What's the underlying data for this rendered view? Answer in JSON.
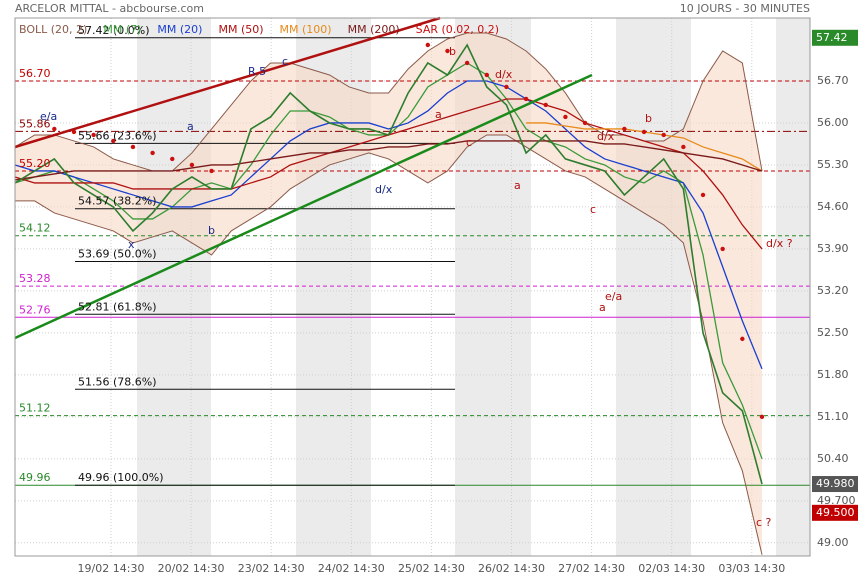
{
  "chart_data": {
    "type": "line",
    "title": "ARCELOR MITTAL - abcbourse.com",
    "subtitle": "10 JOURS - 30 MINUTES",
    "ylim": [
      48.78,
      57.75
    ],
    "yticks": [
      {
        "value": 49.0,
        "label": "49.00"
      },
      {
        "value": 49.7,
        "label": "49.700"
      },
      {
        "value": 50.4,
        "label": "50.40"
      },
      {
        "value": 51.1,
        "label": "51.10"
      },
      {
        "value": 51.8,
        "label": "51.80"
      },
      {
        "value": 52.5,
        "label": "52.50"
      },
      {
        "value": 53.2,
        "label": "53.20"
      },
      {
        "value": 53.9,
        "label": "53.90"
      },
      {
        "value": 54.6,
        "label": "54.60"
      },
      {
        "value": 55.3,
        "label": "55.30"
      },
      {
        "value": 56.0,
        "label": "56.00"
      },
      {
        "value": 56.7,
        "label": "56.70"
      }
    ],
    "xticks": [
      "19/02 14:30",
      "20/02 14:30",
      "23/02 14:30",
      "24/02 14:30",
      "25/02 14:30",
      "26/02 14:30",
      "27/02 14:30",
      "02/03 14:30",
      "03/03 14:30"
    ],
    "grid": true,
    "color": "#2e7d2e",
    "values": [
      55.0,
      55.2,
      55.4,
      55.0,
      54.8,
      54.6,
      54.2,
      54.5,
      54.9,
      55.1,
      54.9,
      54.9,
      55.9,
      56.1,
      56.5,
      56.2,
      56.0,
      55.9,
      55.9,
      55.8,
      56.5,
      57.0,
      56.8,
      57.3,
      56.6,
      56.3,
      55.5,
      55.8,
      55.4,
      55.3,
      55.2,
      54.8,
      55.1,
      55.4,
      54.9,
      52.5,
      51.5,
      51.2,
      49.98
    ],
    "series": [
      {
        "name": "BOLL (20, 2)",
        "color": "#8b5a4a",
        "upper": [
          55.6,
          55.8,
          55.8,
          55.7,
          55.6,
          55.4,
          55.3,
          55.2,
          55.2,
          55.5,
          55.9,
          56.3,
          56.7,
          57.0,
          57.0,
          56.9,
          56.8,
          56.6,
          56.5,
          56.5,
          56.9,
          57.2,
          57.4,
          57.5,
          57.5,
          57.4,
          57.2,
          56.9,
          56.5,
          56.0,
          55.8,
          55.8,
          55.7,
          55.7,
          55.9,
          56.7,
          57.2,
          57.0,
          55.2
        ],
        "lower": [
          54.7,
          54.7,
          54.5,
          54.4,
          54.3,
          54.2,
          54.0,
          54.1,
          54.2,
          54.0,
          53.8,
          54.2,
          54.4,
          54.6,
          54.9,
          55.1,
          55.3,
          55.4,
          55.5,
          55.4,
          55.2,
          55.0,
          55.2,
          55.6,
          55.8,
          55.8,
          55.6,
          55.4,
          55.2,
          55.1,
          54.9,
          54.7,
          54.5,
          54.3,
          54.0,
          52.7,
          51.0,
          50.2,
          48.8
        ]
      },
      {
        "name": "MM (7)",
        "color": "#3a9a3a",
        "values": [
          55.0,
          55.1,
          55.2,
          55.1,
          54.9,
          54.7,
          54.4,
          54.4,
          54.6,
          54.9,
          55.0,
          54.9,
          55.3,
          55.8,
          56.2,
          56.2,
          56.1,
          55.9,
          55.8,
          55.8,
          56.1,
          56.6,
          56.8,
          57.0,
          56.8,
          56.4,
          55.9,
          55.7,
          55.6,
          55.4,
          55.3,
          55.1,
          55.0,
          55.2,
          55.0,
          53.8,
          52.0,
          51.3,
          50.4
        ]
      },
      {
        "name": "MM (20)",
        "color": "#1a3fd0",
        "values": [
          55.3,
          55.2,
          55.2,
          55.1,
          55.0,
          54.9,
          54.8,
          54.7,
          54.6,
          54.6,
          54.7,
          54.8,
          55.1,
          55.4,
          55.7,
          55.9,
          56.0,
          56.0,
          56.0,
          55.9,
          56.0,
          56.2,
          56.5,
          56.7,
          56.7,
          56.6,
          56.4,
          56.2,
          55.9,
          55.6,
          55.4,
          55.3,
          55.2,
          55.1,
          55.0,
          54.5,
          53.6,
          52.7,
          51.9
        ]
      },
      {
        "name": "MM (50)",
        "color": "#b01010",
        "values": [
          55.1,
          55.0,
          55.0,
          55.0,
          55.0,
          55.0,
          54.9,
          54.9,
          54.9,
          54.9,
          54.9,
          54.9,
          55.0,
          55.1,
          55.3,
          55.4,
          55.5,
          55.6,
          55.7,
          55.8,
          55.9,
          56.0,
          56.1,
          56.2,
          56.3,
          56.4,
          56.4,
          56.3,
          56.2,
          56.0,
          55.9,
          55.8,
          55.7,
          55.6,
          55.5,
          55.2,
          54.8,
          54.3,
          53.9
        ]
      },
      {
        "name": "MM (100)",
        "color": "#e88a1a",
        "values": [
          null,
          null,
          null,
          null,
          null,
          null,
          null,
          null,
          null,
          null,
          null,
          null,
          null,
          null,
          null,
          null,
          null,
          null,
          null,
          null,
          null,
          null,
          null,
          null,
          null,
          null,
          56.0,
          56.0,
          55.95,
          55.9,
          55.9,
          55.9,
          55.85,
          55.8,
          55.75,
          55.6,
          55.5,
          55.4,
          55.2
        ]
      },
      {
        "name": "MM (200)",
        "color": "#7a1a1a",
        "values": [
          55.05,
          55.1,
          55.15,
          55.2,
          55.2,
          55.2,
          55.2,
          55.2,
          55.2,
          55.25,
          55.3,
          55.3,
          55.35,
          55.4,
          55.45,
          55.5,
          55.5,
          55.55,
          55.55,
          55.6,
          55.6,
          55.65,
          55.65,
          55.7,
          55.7,
          55.7,
          55.7,
          55.7,
          55.7,
          55.7,
          55.65,
          55.65,
          55.6,
          55.55,
          55.5,
          55.45,
          55.4,
          55.3,
          55.2
        ]
      },
      {
        "name": "SAR (0.02, 0.2)",
        "color": "#cc1010",
        "dots": true,
        "values": [
          null,
          null,
          55.9,
          55.85,
          55.8,
          55.7,
          55.6,
          55.5,
          55.4,
          55.3,
          55.2,
          null,
          null,
          null,
          null,
          null,
          null,
          null,
          null,
          null,
          null,
          57.3,
          57.2,
          57.0,
          56.8,
          56.6,
          56.4,
          56.3,
          56.1,
          56.0,
          null,
          55.9,
          55.85,
          55.8,
          55.6,
          54.8,
          53.9,
          52.4,
          51.1
        ]
      }
    ],
    "levels": [
      {
        "value": 56.7,
        "label": "56.70",
        "color": "#c00000",
        "dash": "4,3"
      },
      {
        "value": 55.86,
        "label": "55.86",
        "color": "#8b0000",
        "dash": "8,3,2,3"
      },
      {
        "value": 55.2,
        "label": "55.20",
        "color": "#c00000",
        "dash": "4,3"
      },
      {
        "value": 54.12,
        "label": "54.12",
        "color": "#2a8a2a",
        "dash": "4,3"
      },
      {
        "value": 53.28,
        "label": "53.28",
        "color": "#d020d0",
        "dash": "4,3"
      },
      {
        "value": 52.76,
        "label": "52.76",
        "color": "#d020d0",
        "dash": "none"
      },
      {
        "value": 51.12,
        "label": "51.12",
        "color": "#2a8a2a",
        "dash": "4,3"
      },
      {
        "value": 49.96,
        "label": "49.96",
        "color": "#2a8a2a",
        "dash": "none"
      }
    ],
    "fibonacci": [
      {
        "value": 57.42,
        "label": "57.42  (0.0%)"
      },
      {
        "value": 55.66,
        "label": "55.66  (23.6%)"
      },
      {
        "value": 54.57,
        "label": "54.57  (38.2%)"
      },
      {
        "value": 53.69,
        "label": "53.69  (50.0%)"
      },
      {
        "value": 52.81,
        "label": "52.81  (61.8%)"
      },
      {
        "value": 51.56,
        "label": "51.56  (78.6%)"
      },
      {
        "value": 49.96,
        "label": "49.96  (100.0%)"
      }
    ],
    "price_tags": [
      {
        "value": 57.42,
        "label": "57.42",
        "color": "#2a8a2a"
      },
      {
        "value": 49.98,
        "label": "49.980",
        "color": "#555555"
      },
      {
        "value": 49.5,
        "label": "49.500",
        "color": "#c00000"
      }
    ],
    "annotations": [
      {
        "text": "R 5",
        "color": "#1a2a8a"
      },
      {
        "text": "c",
        "color": "#1a2a8a"
      },
      {
        "text": "e/a",
        "color": "#1a2a8a"
      },
      {
        "text": "x",
        "color": "#1a2a8a"
      },
      {
        "text": "a",
        "color": "#1a2a8a"
      },
      {
        "text": "b",
        "color": "#1a2a8a"
      },
      {
        "text": "d/x",
        "color": "#1a2a8a"
      },
      {
        "text": "a",
        "color": "#b01010"
      },
      {
        "text": "b",
        "color": "#b01010"
      },
      {
        "text": "c",
        "color": "#b01010"
      },
      {
        "text": "d/x",
        "color": "#b01010"
      },
      {
        "text": "a",
        "color": "#b01010"
      },
      {
        "text": "d/x",
        "color": "#b01010"
      },
      {
        "text": "b",
        "color": "#b01010"
      },
      {
        "text": "c",
        "color": "#b01010"
      },
      {
        "text": "e/a",
        "color": "#b01010"
      },
      {
        "text": "a",
        "color": "#b01010"
      },
      {
        "text": "d/x ?",
        "color": "#b01010"
      },
      {
        "text": "c ?",
        "color": "#b01010"
      }
    ]
  }
}
